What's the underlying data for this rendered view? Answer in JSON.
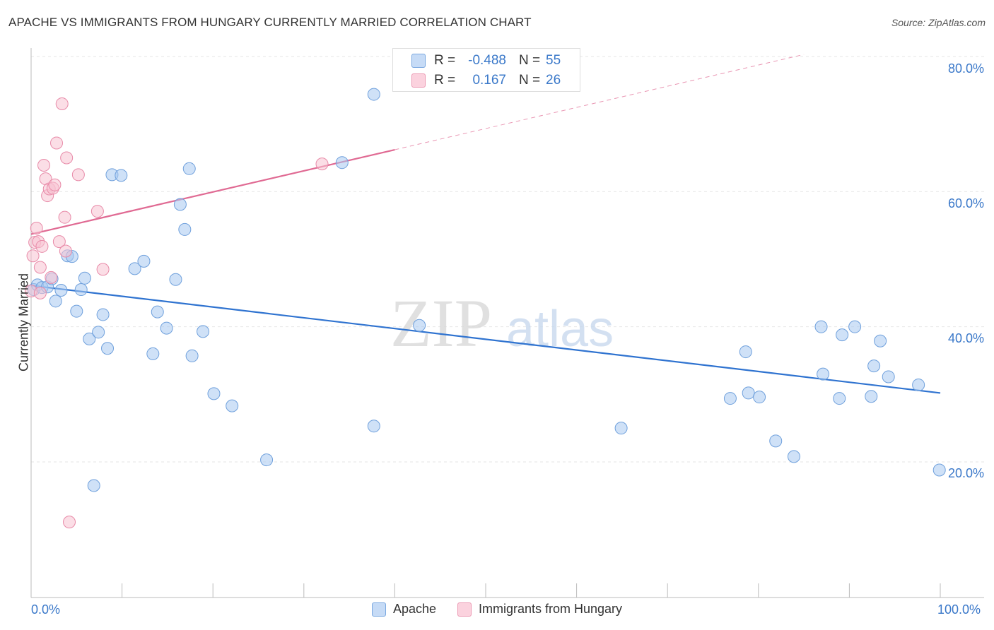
{
  "title": "APACHE VS IMMIGRANTS FROM HUNGARY CURRENTLY MARRIED CORRELATION CHART",
  "source": "Source: ZipAtlas.com",
  "watermark": {
    "zip": "ZIP",
    "atlas": "atlas"
  },
  "stats": {
    "rows": [
      {
        "r_label": "R =",
        "r_value": "-0.488",
        "n_label": "N =",
        "n_value": "55",
        "color": "#a8c8f0"
      },
      {
        "r_label": "R =",
        "r_value": "0.167",
        "n_label": "N =",
        "n_value": "26",
        "color": "#f7b8cb"
      }
    ]
  },
  "legend": {
    "items": [
      {
        "label": "Apache",
        "color": "#a8c8f0",
        "border": "#6fa0dc"
      },
      {
        "label": "Immigrants from Hungary",
        "color": "#f7c3d2",
        "border": "#e88aa8"
      }
    ]
  },
  "chart_data": {
    "type": "scatter",
    "title": "APACHE VS IMMIGRANTS FROM HUNGARY CURRENTLY MARRIED CORRELATION CHART",
    "xlabel": "",
    "ylabel": "Currently Married",
    "xlim": [
      0,
      100
    ],
    "ylim": [
      0,
      82
    ],
    "x_tick_labels": [
      "0.0%",
      "100.0%"
    ],
    "y_ticks": [
      20,
      40,
      60,
      80
    ],
    "y_tick_labels": [
      "20.0%",
      "40.0%",
      "60.0%",
      "80.0%"
    ],
    "grid": true,
    "series": [
      {
        "name": "Apache",
        "color": "#6fa0dc",
        "fill": "#a8c8f0",
        "trend": {
          "x": [
            0,
            100
          ],
          "y": [
            46.1,
            30.2
          ],
          "color": "#2f73d0"
        },
        "points": [
          [
            0.3,
            45.5
          ],
          [
            0.7,
            46.2
          ],
          [
            1.2,
            45.8
          ],
          [
            1.8,
            45.9
          ],
          [
            2.3,
            47.1
          ],
          [
            2.7,
            43.8
          ],
          [
            3.3,
            45.4
          ],
          [
            4.0,
            50.5
          ],
          [
            4.5,
            50.4
          ],
          [
            5.0,
            42.3
          ],
          [
            5.5,
            45.5
          ],
          [
            5.9,
            47.2
          ],
          [
            6.4,
            38.2
          ],
          [
            7.4,
            39.2
          ],
          [
            7.9,
            41.8
          ],
          [
            8.4,
            36.8
          ],
          [
            8.9,
            62.5
          ],
          [
            9.9,
            62.4
          ],
          [
            11.4,
            48.6
          ],
          [
            12.4,
            49.7
          ],
          [
            13.4,
            36.0
          ],
          [
            13.9,
            42.2
          ],
          [
            14.9,
            39.8
          ],
          [
            15.9,
            47.0
          ],
          [
            16.4,
            58.1
          ],
          [
            16.9,
            54.4
          ],
          [
            17.4,
            63.4
          ],
          [
            17.7,
            35.7
          ],
          [
            18.9,
            39.3
          ],
          [
            20.1,
            30.1
          ],
          [
            22.1,
            28.3
          ],
          [
            25.9,
            20.3
          ],
          [
            6.9,
            16.5
          ],
          [
            37.7,
            74.4
          ],
          [
            37.7,
            25.3
          ],
          [
            34.2,
            64.3
          ],
          [
            42.7,
            40.2
          ],
          [
            64.9,
            25.0
          ],
          [
            76.9,
            29.4
          ],
          [
            78.6,
            36.3
          ],
          [
            78.9,
            30.2
          ],
          [
            80.1,
            29.6
          ],
          [
            81.9,
            23.1
          ],
          [
            83.9,
            20.8
          ],
          [
            86.9,
            40.0
          ],
          [
            87.1,
            33.0
          ],
          [
            88.9,
            29.4
          ],
          [
            89.2,
            38.8
          ],
          [
            90.6,
            40.0
          ],
          [
            92.4,
            29.7
          ],
          [
            92.7,
            34.2
          ],
          [
            93.4,
            37.9
          ],
          [
            94.3,
            32.6
          ],
          [
            97.6,
            31.4
          ],
          [
            99.9,
            18.8
          ]
        ]
      },
      {
        "name": "Immigrants from Hungary",
        "color": "#e88aa8",
        "fill": "#f7c3d2",
        "trend": {
          "x": [
            0,
            40
          ],
          "y": [
            53.7,
            66.2
          ],
          "color": "#e06a93",
          "dashed_to": [
            85,
            80.3
          ]
        },
        "points": [
          [
            0.0,
            45.3
          ],
          [
            0.2,
            50.5
          ],
          [
            0.4,
            52.5
          ],
          [
            0.6,
            54.6
          ],
          [
            0.8,
            52.6
          ],
          [
            1.0,
            48.8
          ],
          [
            1.2,
            51.9
          ],
          [
            1.4,
            63.9
          ],
          [
            1.6,
            61.9
          ],
          [
            1.8,
            59.4
          ],
          [
            2.0,
            60.4
          ],
          [
            2.2,
            47.3
          ],
          [
            2.4,
            60.5
          ],
          [
            2.6,
            61.0
          ],
          [
            2.8,
            67.2
          ],
          [
            3.1,
            52.6
          ],
          [
            3.4,
            73.0
          ],
          [
            3.7,
            56.2
          ],
          [
            3.8,
            51.2
          ],
          [
            3.9,
            65.0
          ],
          [
            4.2,
            11.1
          ],
          [
            5.2,
            62.5
          ],
          [
            7.3,
            57.1
          ],
          [
            7.9,
            48.5
          ],
          [
            32.0,
            64.1
          ],
          [
            1.0,
            45.0
          ]
        ]
      }
    ]
  }
}
